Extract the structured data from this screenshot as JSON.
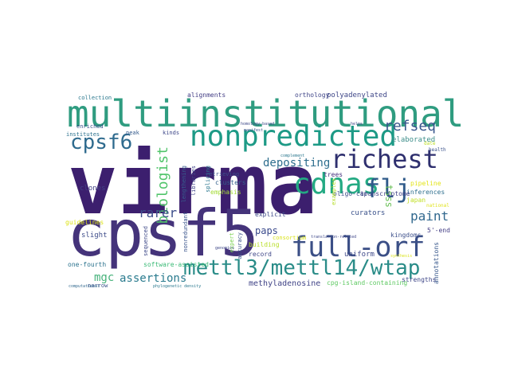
{
  "wordcloud": {
    "words": [
      {
        "text": "virma",
        "color": "#3c1f6e"
      },
      {
        "text": "cpsf5",
        "color": "#44337a"
      },
      {
        "text": "multiinstitutional",
        "color": "#2f9c80"
      },
      {
        "text": "nonpredicted",
        "color": "#1d9a86"
      },
      {
        "text": "cdnas",
        "color": "#24aa83"
      },
      {
        "text": "richest",
        "color": "#2e2f6e"
      },
      {
        "text": "full-orf",
        "color": "#3b4f86"
      },
      {
        "text": "mettl3/mettl14/wtap",
        "color": "#2a8c88"
      },
      {
        "text": "cpsf6",
        "color": "#2f6b8e"
      },
      {
        "text": "flj",
        "color": "#2f5a8a"
      },
      {
        "text": "refseq",
        "color": "#39568c"
      },
      {
        "text": "biologist",
        "color": "#50c46a"
      },
      {
        "text": "rarer",
        "color": "#3c4d8a"
      },
      {
        "text": "paint",
        "color": "#31688e"
      },
      {
        "text": "assertions",
        "color": "#2a7b8e"
      },
      {
        "text": "mgc",
        "color": "#46b27a"
      },
      {
        "text": "depositing",
        "color": "#2e6e8e"
      },
      {
        "text": "paps",
        "color": "#3a4a8c"
      },
      {
        "text": "methyladenosine",
        "color": "#414487"
      },
      {
        "text": "tsss",
        "color": "#6cc15a"
      },
      {
        "text": "elaborated",
        "color": "#3d8e8a"
      },
      {
        "text": "polyadenylated",
        "color": "#3f4788"
      },
      {
        "text": "alignments",
        "color": "#433e85"
      },
      {
        "text": "orthology",
        "color": "#404688"
      },
      {
        "text": "curators",
        "color": "#3b528b"
      },
      {
        "text": "clusters",
        "color": "#35608d"
      },
      {
        "text": "inferences",
        "color": "#2e6f8e"
      },
      {
        "text": "pipeline",
        "color": "#e3e418"
      },
      {
        "text": "japan",
        "color": "#c0df25"
      },
      {
        "text": "national",
        "color": "#e0e31a"
      },
      {
        "text": "kingdoms",
        "color": "#3c4f8a"
      },
      {
        "text": "5'-end",
        "color": "#433d84"
      },
      {
        "text": "uniform",
        "color": "#3e4989"
      },
      {
        "text": "annotations",
        "color": "#38588c"
      },
      {
        "text": "strengths",
        "color": "#3f4788"
      },
      {
        "text": "cpg-island-containing",
        "color": "#5ec962"
      },
      {
        "text": "software-assisted",
        "color": "#3aba76"
      },
      {
        "text": "one-fourth",
        "color": "#2c738e"
      },
      {
        "text": "narrow",
        "color": "#3b528b"
      },
      {
        "text": "slight",
        "color": "#3e4c8a"
      },
      {
        "text": "clones",
        "color": "#424186"
      },
      {
        "text": "guidelines",
        "color": "#dde318"
      },
      {
        "text": "sequenced",
        "color": "#3e4989"
      },
      {
        "text": "collection",
        "color": "#2a788e"
      },
      {
        "text": "enriched",
        "color": "#3b528b"
      },
      {
        "text": "peak",
        "color": "#365c8d"
      },
      {
        "text": "kinds",
        "color": "#3f4889"
      },
      {
        "text": "institutes",
        "color": "#2c728e"
      },
      {
        "text": "splicing",
        "color": "#2a768e"
      },
      {
        "text": "emphasis",
        "color": "#a5db36"
      },
      {
        "text": "retrieving",
        "color": "#3c4f8a"
      },
      {
        "text": "trees",
        "color": "#46327e"
      },
      {
        "text": "oligo-cap",
        "color": "#3d4e8a"
      },
      {
        "text": "transcriptome",
        "color": "#414287"
      },
      {
        "text": "record",
        "color": "#3f4788"
      },
      {
        "text": "building",
        "color": "#b8de29"
      },
      {
        "text": "accuracy",
        "color": "#3b528b"
      },
      {
        "text": "explicit",
        "color": "#3e4a89"
      },
      {
        "text": "nonredundant",
        "color": "#3a548c"
      },
      {
        "text": "libraries",
        "color": "#404588"
      },
      {
        "text": "lengthening",
        "color": "#365d8d"
      },
      {
        "text": "consortium",
        "color": "#d8e219"
      },
      {
        "text": "expert",
        "color": "#7ad151"
      },
      {
        "text": "homology-based",
        "color": "#3e4a89"
      },
      {
        "text": "manifest",
        "color": "#3b518b"
      },
      {
        "text": "complement",
        "color": "#2a778e"
      },
      {
        "text": "translation-related",
        "color": "#3f4889"
      },
      {
        "text": "computational",
        "color": "#31688e"
      },
      {
        "text": "phylogenetic density",
        "color": "#2a788e"
      },
      {
        "text": "genomics",
        "color": "#3f4788"
      },
      {
        "text": "examples",
        "color": "#b5de2b"
      },
      {
        "text": "helps",
        "color": "#404688"
      },
      {
        "text": "health",
        "color": "#3b528b"
      },
      {
        "text": "date",
        "color": "#bddf26"
      },
      {
        "text": "synthesis",
        "color": "#dae319"
      }
    ]
  }
}
